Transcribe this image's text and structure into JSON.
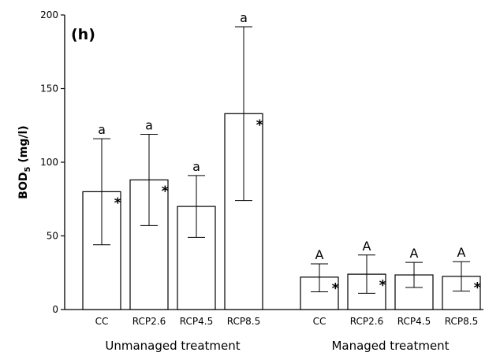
{
  "chart_data": {
    "type": "bar",
    "panel_label": "(h)",
    "ylabel_main": "BOD",
    "ylabel_sub": "5",
    "ylabel_unit": " (mg/l)",
    "ylim": [
      0,
      200
    ],
    "yticks": [
      0,
      50,
      100,
      150,
      200
    ],
    "groups": [
      {
        "name": "Unmanaged treatment",
        "bars": [
          {
            "category": "CC",
            "value": 80,
            "err_low": 44,
            "err_high": 116,
            "letter": "a",
            "star": "*"
          },
          {
            "category": "RCP2.6",
            "value": 88,
            "err_low": 57,
            "err_high": 119,
            "letter": "a",
            "star": "*"
          },
          {
            "category": "RCP4.5",
            "value": 70,
            "err_low": 49,
            "err_high": 91,
            "letter": "a",
            "star": ""
          },
          {
            "category": "RCP8.5",
            "value": 133,
            "err_low": 74,
            "err_high": 192,
            "letter": "a",
            "star": "*"
          }
        ]
      },
      {
        "name": "Managed treatment",
        "bars": [
          {
            "category": "CC",
            "value": 22,
            "err_low": 12,
            "err_high": 31,
            "letter": "A",
            "star": "*"
          },
          {
            "category": "RCP2.6",
            "value": 24,
            "err_low": 11,
            "err_high": 37,
            "letter": "A",
            "star": "*"
          },
          {
            "category": "RCP4.5",
            "value": 23.5,
            "err_low": 15,
            "err_high": 32,
            "letter": "A",
            "star": ""
          },
          {
            "category": "RCP8.5",
            "value": 22.5,
            "err_low": 12.5,
            "err_high": 32.5,
            "letter": "A",
            "star": "*"
          }
        ]
      }
    ],
    "grid": false,
    "legend": "none"
  }
}
